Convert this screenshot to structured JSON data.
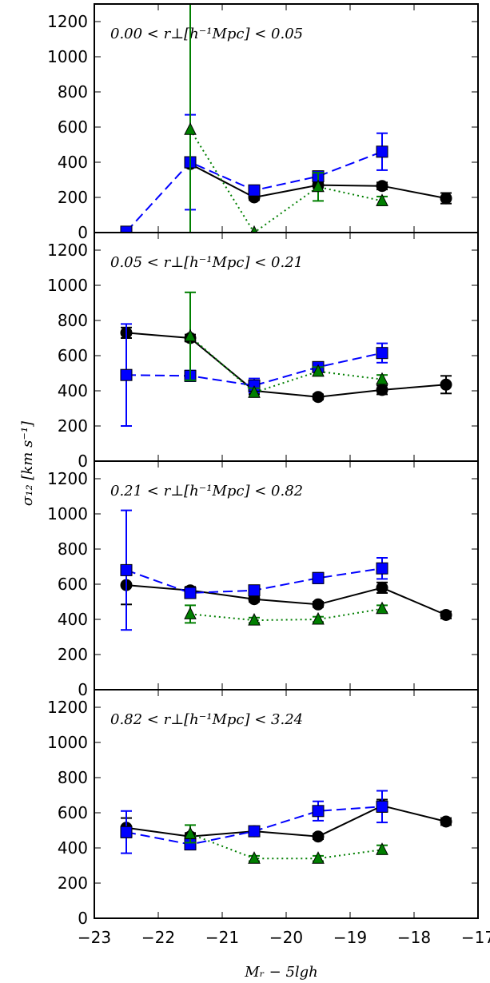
{
  "chart_data": [
    {
      "type": "line",
      "title": "0.00 < r⊥[h⁻¹Mpc] < 0.05",
      "xlim": [
        -23,
        -17
      ],
      "ylim": [
        0,
        1300
      ],
      "series": [
        {
          "color": "#000000",
          "marker": "circle",
          "line": "solid",
          "x": [
            -21.5,
            -20.5,
            -19.5,
            -18.5,
            -17.5
          ],
          "y": [
            390,
            200,
            270,
            265,
            195
          ],
          "err": [
            20,
            15,
            15,
            20,
            30
          ]
        },
        {
          "color": "#0000ff",
          "marker": "square",
          "line": "dashed",
          "x": [
            -22.5,
            -21.5,
            -20.5,
            -19.5,
            -18.5
          ],
          "y": [
            5,
            400,
            240,
            320,
            460
          ],
          "err": [
            0,
            270,
            0,
            0,
            105
          ]
        },
        {
          "color": "#007f00",
          "marker": "triangle",
          "line": "dotted",
          "x": [
            -21.5,
            -20.5,
            -19.5,
            -18.5
          ],
          "y": [
            585,
            0,
            260,
            180
          ],
          "err": [
            900,
            0,
            80,
            25
          ]
        }
      ]
    },
    {
      "type": "line",
      "title": "0.05 < r⊥[h⁻¹Mpc] < 0.21",
      "xlim": [
        -23,
        -17
      ],
      "ylim": [
        0,
        1300
      ],
      "series": [
        {
          "color": "#000000",
          "marker": "circle",
          "line": "solid",
          "x": [
            -22.5,
            -21.5,
            -20.5,
            -19.5,
            -18.5,
            -17.5
          ],
          "y": [
            730,
            700,
            400,
            365,
            405,
            435
          ],
          "err": [
            30,
            20,
            20,
            15,
            25,
            50
          ]
        },
        {
          "color": "#0000ff",
          "marker": "square",
          "line": "dashed",
          "x": [
            -22.5,
            -21.5,
            -20.5,
            -19.5,
            -18.5
          ],
          "y": [
            490,
            485,
            430,
            535,
            615
          ],
          "err": [
            290,
            30,
            40,
            25,
            55
          ]
        },
        {
          "color": "#007f00",
          "marker": "triangle",
          "line": "dotted",
          "x": [
            -21.5,
            -20.5,
            -19.5,
            -18.5
          ],
          "y": [
            710,
            390,
            510,
            465
          ],
          "err": [
            250,
            25,
            25,
            25
          ]
        }
      ]
    },
    {
      "type": "line",
      "title": "0.21 < r⊥[h⁻¹Mpc] < 0.82",
      "xlim": [
        -23,
        -17
      ],
      "ylim": [
        0,
        1300
      ],
      "series": [
        {
          "color": "#000000",
          "marker": "circle",
          "line": "solid",
          "x": [
            -22.5,
            -21.5,
            -20.5,
            -19.5,
            -18.5,
            -17.5
          ],
          "y": [
            595,
            565,
            515,
            485,
            580,
            425
          ],
          "err": [
            110,
            20,
            15,
            15,
            30,
            20
          ]
        },
        {
          "color": "#0000ff",
          "marker": "square",
          "line": "dashed",
          "x": [
            -22.5,
            -21.5,
            -20.5,
            -19.5,
            -18.5
          ],
          "y": [
            680,
            550,
            565,
            635,
            690
          ],
          "err": [
            340,
            20,
            15,
            30,
            60
          ]
        },
        {
          "color": "#007f00",
          "marker": "triangle",
          "line": "dotted",
          "x": [
            -21.5,
            -20.5,
            -19.5,
            -18.5
          ],
          "y": [
            430,
            395,
            400,
            460
          ],
          "err": [
            50,
            15,
            15,
            20
          ]
        }
      ]
    },
    {
      "type": "line",
      "title": "0.82 < r⊥[h⁻¹Mpc] < 3.24",
      "xlim": [
        -23,
        -17
      ],
      "ylim": [
        0,
        1300
      ],
      "series": [
        {
          "color": "#000000",
          "marker": "circle",
          "line": "solid",
          "x": [
            -22.5,
            -21.5,
            -20.5,
            -19.5,
            -18.5,
            -17.5
          ],
          "y": [
            515,
            465,
            495,
            465,
            640,
            550
          ],
          "err": [
            55,
            20,
            15,
            15,
            35,
            20
          ]
        },
        {
          "color": "#0000ff",
          "marker": "square",
          "line": "dashed",
          "x": [
            -22.5,
            -21.5,
            -20.5,
            -19.5,
            -18.5
          ],
          "y": [
            490,
            420,
            495,
            610,
            635
          ],
          "err": [
            120,
            20,
            20,
            55,
            90
          ]
        },
        {
          "color": "#007f00",
          "marker": "triangle",
          "line": "dotted",
          "x": [
            -21.5,
            -20.5,
            -19.5,
            -18.5
          ],
          "y": [
            480,
            340,
            340,
            390
          ],
          "err": [
            50,
            15,
            15,
            25
          ]
        }
      ]
    }
  ],
  "axes": {
    "ylabel": "σ₁₂ [km s⁻¹]",
    "xlabel": "Mᵣ − 5lgh",
    "xticks": [
      "−23",
      "−22",
      "−21",
      "−20",
      "−19",
      "−18",
      "−17"
    ],
    "xtick_values": [
      -23,
      -22,
      -21,
      -20,
      -19,
      -18,
      -17
    ],
    "yticks": [
      "0",
      "200",
      "400",
      "600",
      "800",
      "1000",
      "1200"
    ],
    "ytick_values": [
      0,
      200,
      400,
      600,
      800,
      1000,
      1200
    ]
  }
}
